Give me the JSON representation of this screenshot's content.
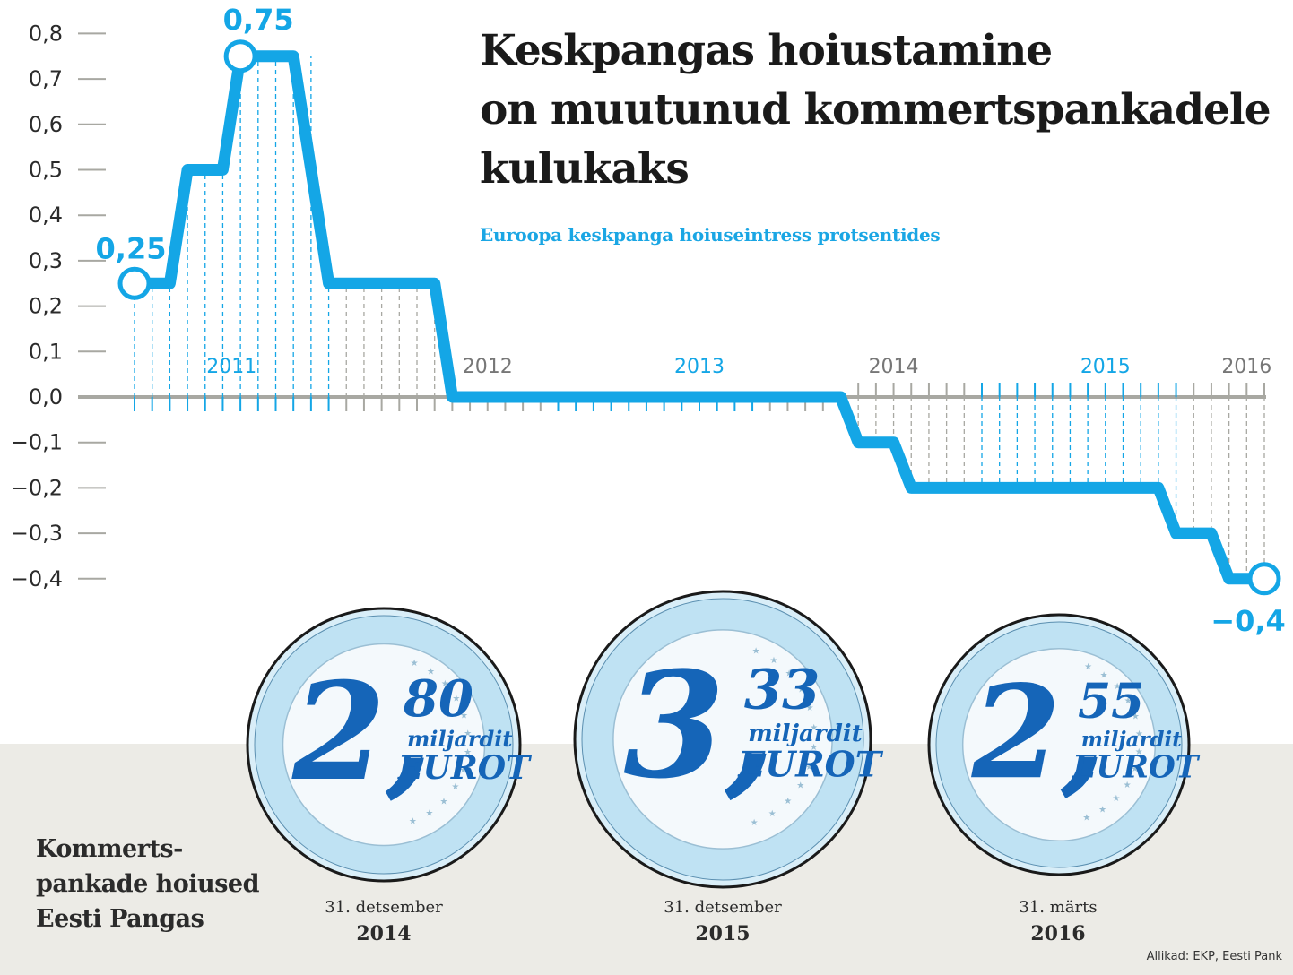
{
  "title_lines": [
    "Keskpangas hoiustamine",
    "on muutunud kommertspankadele",
    "kulukaks"
  ],
  "subtitle": "Euroopa keskpanga hoiuseintress protsentides",
  "chart_data": {
    "type": "line",
    "step": true,
    "ylim": [
      -0.45,
      0.85
    ],
    "y_ticks": [
      "0,8",
      "0,7",
      "0,6",
      "0,5",
      "0,4",
      "0,3",
      "0,2",
      "0,1",
      "0,0",
      "−0,1",
      "−0,2",
      "−0,3",
      "−0,4"
    ],
    "y_tick_values": [
      0.8,
      0.7,
      0.6,
      0.5,
      0.4,
      0.3,
      0.2,
      0.1,
      0.0,
      -0.1,
      -0.2,
      -0.3,
      -0.4
    ],
    "year_labels": [
      {
        "label": "2011",
        "month": 5.5
      },
      {
        "label": "2012",
        "month": 20
      },
      {
        "label": "2013",
        "month": 32
      },
      {
        "label": "2014",
        "month": 43
      },
      {
        "label": "2015",
        "month": 55
      },
      {
        "label": "2016",
        "month": 63
      }
    ],
    "x_month_range": [
      0,
      64
    ],
    "points": [
      {
        "month": 0,
        "value": 0.25
      },
      {
        "month": 2,
        "value": 0.25
      },
      {
        "month": 3,
        "value": 0.5
      },
      {
        "month": 5,
        "value": 0.5
      },
      {
        "month": 6,
        "value": 0.75
      },
      {
        "month": 9,
        "value": 0.75
      },
      {
        "month": 11,
        "value": 0.25
      },
      {
        "month": 17,
        "value": 0.25
      },
      {
        "month": 18,
        "value": 0.0
      },
      {
        "month": 40,
        "value": 0.0
      },
      {
        "month": 41,
        "value": -0.1
      },
      {
        "month": 43,
        "value": -0.1
      },
      {
        "month": 44,
        "value": -0.2
      },
      {
        "month": 58,
        "value": -0.2
      },
      {
        "month": 59,
        "value": -0.3
      },
      {
        "month": 61,
        "value": -0.3
      },
      {
        "month": 62,
        "value": -0.4
      },
      {
        "month": 64,
        "value": -0.4
      }
    ],
    "annotations": [
      {
        "label": "0,25",
        "month": 0,
        "value": 0.25
      },
      {
        "label": "0,75",
        "month": 6,
        "value": 0.75
      },
      {
        "label": "−0,4",
        "month": 64,
        "value": -0.4
      }
    ],
    "colors": {
      "line": "#14a6e6",
      "axis": "#a8a8a2",
      "text": "#2b2b2b"
    }
  },
  "coins": [
    {
      "int": "2,",
      "dec": "80",
      "unit": "miljardit",
      "currency": "EUROT",
      "date": "31. detsember",
      "year": "2014"
    },
    {
      "int": "3,",
      "dec": "33",
      "unit": "miljardit",
      "currency": "EUROT",
      "date": "31. detsember",
      "year": "2015"
    },
    {
      "int": "2,",
      "dec": "55",
      "unit": "miljardit",
      "currency": "EUROT",
      "date": "31. märts",
      "year": "2016"
    }
  ],
  "left_label_lines": [
    "Kommerts-",
    "pankade hoiused",
    "Eesti Pangas"
  ],
  "source": "Allikad: EKP, Eesti Pank"
}
